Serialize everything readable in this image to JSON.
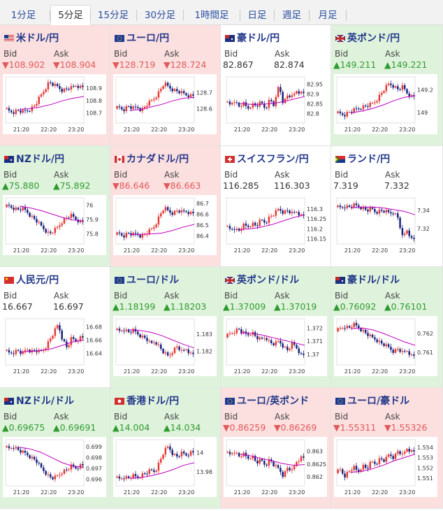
{
  "tabs": [
    "1分足",
    "5分足",
    "15分足",
    "30分足",
    "1時間足",
    "日足",
    "週足",
    "月足"
  ],
  "active_tab": "5分足",
  "labels": {
    "bid": "Bid",
    "ask": "Ask"
  },
  "colors": {
    "down_bg": "#fcdfdf",
    "up_bg": "#dff3dc",
    "up_candle": "#e53935",
    "down_candle": "#1a237e",
    "ma_line": "#c000c0"
  },
  "panels": [
    {
      "name": "米ドル/円",
      "flag": "us-flag",
      "trend": "down",
      "bid": "▼108.902",
      "ask": "▼108.904"
    },
    {
      "name": "ユーロ/円",
      "flag": "eu-flag",
      "trend": "down",
      "bid": "▼128.719",
      "ask": "▼128.724"
    },
    {
      "name": "豪ドル/円",
      "flag": "au-flag",
      "trend": "flat",
      "bid": "82.867",
      "ask": "82.874"
    },
    {
      "name": "英ポンド/円",
      "flag": "gb-flag",
      "trend": "up",
      "bid": "▲149.211",
      "ask": "▲149.221"
    },
    {
      "name": "NZドル/円",
      "flag": "nz-flag",
      "trend": "up",
      "bid": "▲75.880",
      "ask": "▲75.892"
    },
    {
      "name": "カナダドル/円",
      "flag": "ca-flag",
      "trend": "down",
      "bid": "▼86.646",
      "ask": "▼86.663"
    },
    {
      "name": "スイスフラン/円",
      "flag": "ch-flag",
      "trend": "flat",
      "bid": "116.285",
      "ask": "116.303"
    },
    {
      "name": "ランド/円",
      "flag": "za-flag",
      "trend": "flat",
      "bid": "7.319",
      "ask": "7.332"
    },
    {
      "name": "人民元/円",
      "flag": "cn-flag",
      "trend": "flat",
      "bid": "16.667",
      "ask": "16.697"
    },
    {
      "name": "ユーロ/ドル",
      "flag": "eu-flag",
      "trend": "up",
      "bid": "▲1.18199",
      "ask": "▲1.18203"
    },
    {
      "name": "英ポンド/ドル",
      "flag": "gb-flag",
      "trend": "up",
      "bid": "▲1.37009",
      "ask": "▲1.37019"
    },
    {
      "name": "豪ドル/ドル",
      "flag": "au-flag",
      "trend": "up",
      "bid": "▲0.76092",
      "ask": "▲0.76101"
    },
    {
      "name": "NZドル/ドル",
      "flag": "nz-flag",
      "trend": "up",
      "bid": "▲0.69675",
      "ask": "▲0.69691"
    },
    {
      "name": "香港ドル/円",
      "flag": "hk-flag",
      "trend": "up",
      "bid": "▲14.004",
      "ask": "▲14.034"
    },
    {
      "name": "ユーロ/英ポンド",
      "flag": "eu-flag",
      "trend": "down",
      "bid": "▼0.86259",
      "ask": "▼0.86269"
    },
    {
      "name": "ユーロ/豪ドル",
      "flag": "eu-flag",
      "trend": "down",
      "bid": "▼1.55311",
      "ask": "▼1.55326"
    }
  ],
  "chart_data": [
    {
      "type": "candlestick",
      "x_ticks": [
        "21:20",
        "22:20",
        "23:20"
      ],
      "y_ticks": [
        108.9,
        108.8,
        108.7
      ],
      "ylim": [
        108.63,
        108.98
      ],
      "shape": [
        0.3,
        0.24,
        0.22,
        0.26,
        0.22,
        0.25,
        0.3,
        0.4,
        0.58,
        0.74,
        0.92,
        0.84,
        0.8,
        0.72,
        0.76,
        0.78,
        0.84,
        0.8
      ],
      "ma": [
        0.28,
        0.3,
        0.34,
        0.4,
        0.48,
        0.54,
        0.58
      ]
    },
    {
      "type": "candlestick",
      "x_ticks": [
        "21:20",
        "22:20",
        "23:20"
      ],
      "y_ticks": [
        128.7,
        128.6
      ],
      "ylim": [
        128.52,
        128.79
      ],
      "shape": [
        0.3,
        0.32,
        0.28,
        0.36,
        0.3,
        0.34,
        0.26,
        0.38,
        0.46,
        0.56,
        0.7,
        0.88,
        0.8,
        0.74,
        0.7,
        0.66,
        0.62,
        0.6
      ],
      "ma": [
        0.26,
        0.28,
        0.34,
        0.4,
        0.48,
        0.54,
        0.56
      ]
    },
    {
      "type": "candlestick",
      "x_ticks": [
        "21:20",
        "22:20",
        "23:20"
      ],
      "y_ticks": [
        82.95,
        82.9,
        82.85,
        82.8
      ],
      "ylim": [
        82.76,
        82.98
      ],
      "shape": [
        0.46,
        0.38,
        0.5,
        0.34,
        0.42,
        0.3,
        0.4,
        0.36,
        0.44,
        0.3,
        0.52,
        0.36,
        0.86,
        0.42,
        0.62,
        0.56,
        0.72,
        0.66
      ],
      "ma": [
        0.42,
        0.4,
        0.4,
        0.42,
        0.46,
        0.52,
        0.58
      ]
    },
    {
      "type": "candlestick",
      "x_ticks": [
        "21:20",
        "22:20",
        "23:20"
      ],
      "y_ticks": [
        149.2,
        149.0
      ],
      "ylim": [
        148.92,
        149.3
      ],
      "shape": [
        0.2,
        0.18,
        0.16,
        0.22,
        0.26,
        0.3,
        0.34,
        0.36,
        0.4,
        0.48,
        0.62,
        0.76,
        0.88,
        0.82,
        0.74,
        0.8,
        0.66,
        0.58
      ],
      "ma": [
        0.2,
        0.24,
        0.3,
        0.38,
        0.48,
        0.56,
        0.6
      ]
    },
    {
      "type": "candlestick",
      "x_ticks": [
        "21:20",
        "22:20",
        "23:20"
      ],
      "y_ticks": [
        76,
        75.9,
        75.8
      ],
      "ylim": [
        75.74,
        76.04
      ],
      "shape": [
        0.82,
        0.84,
        0.8,
        0.76,
        0.78,
        0.72,
        0.6,
        0.52,
        0.4,
        0.3,
        0.2,
        0.26,
        0.36,
        0.5,
        0.58,
        0.62,
        0.54,
        0.48
      ],
      "ma": [
        0.84,
        0.8,
        0.74,
        0.66,
        0.58,
        0.52,
        0.5
      ]
    },
    {
      "type": "candlestick",
      "x_ticks": [
        "21:20",
        "22:20",
        "23:20"
      ],
      "y_ticks": [
        86.7,
        86.6,
        86.5,
        86.4
      ],
      "ylim": [
        86.34,
        86.74
      ],
      "shape": [
        0.18,
        0.2,
        0.16,
        0.22,
        0.18,
        0.2,
        0.14,
        0.22,
        0.28,
        0.4,
        0.62,
        0.8,
        0.72,
        0.68,
        0.74,
        0.7,
        0.72,
        0.68
      ],
      "ma": [
        0.18,
        0.19,
        0.2,
        0.22,
        0.28,
        0.36,
        0.42
      ]
    },
    {
      "type": "candlestick",
      "x_ticks": [
        "21:20",
        "22:20",
        "23:20"
      ],
      "y_ticks": [
        116.3,
        116.25,
        116.2,
        116.15
      ],
      "ylim": [
        116.13,
        116.35
      ],
      "shape": [
        0.38,
        0.3,
        0.34,
        0.26,
        0.4,
        0.36,
        0.44,
        0.38,
        0.52,
        0.46,
        0.6,
        0.66,
        0.78,
        0.7,
        0.74,
        0.66,
        0.72,
        0.62
      ],
      "ma": [
        0.3,
        0.32,
        0.36,
        0.42,
        0.5,
        0.58,
        0.64
      ]
    },
    {
      "type": "candlestick",
      "x_ticks": [
        "21:20",
        "22:20",
        "23:20"
      ],
      "y_ticks": [
        7.34,
        7.32
      ],
      "ylim": [
        7.305,
        7.352
      ],
      "shape": [
        0.82,
        0.8,
        0.84,
        0.82,
        0.86,
        0.84,
        0.8,
        0.74,
        0.78,
        0.7,
        0.74,
        0.72,
        0.68,
        0.7,
        0.56,
        0.1,
        0.3,
        0.08
      ],
      "ma": [
        0.8,
        0.82,
        0.82,
        0.8,
        0.76,
        0.72,
        0.64
      ]
    },
    {
      "type": "candlestick",
      "x_ticks": [
        "21:20",
        "22:20",
        "23:20"
      ],
      "y_ticks": [
        16.68,
        16.66,
        16.64
      ],
      "ylim": [
        16.625,
        16.69
      ],
      "shape": [
        0.3,
        0.24,
        0.26,
        0.3,
        0.22,
        0.34,
        0.28,
        0.3,
        0.26,
        0.34,
        0.52,
        0.7,
        0.9,
        0.56,
        0.36,
        0.58,
        0.52,
        0.6
      ],
      "ma": [
        0.26,
        0.28,
        0.3,
        0.34,
        0.42,
        0.5,
        0.54
      ]
    },
    {
      "type": "candlestick",
      "x_ticks": [
        "21:20",
        "22:20",
        "23:20"
      ],
      "y_ticks": [
        1.183,
        1.182
      ],
      "ylim": [
        1.1813,
        1.1838
      ],
      "shape": [
        0.78,
        0.74,
        0.8,
        0.72,
        0.76,
        0.7,
        0.62,
        0.58,
        0.44,
        0.52,
        0.38,
        0.24,
        0.16,
        0.3,
        0.4,
        0.26,
        0.34,
        0.22
      ],
      "ma": [
        0.78,
        0.76,
        0.72,
        0.64,
        0.54,
        0.44,
        0.36
      ]
    },
    {
      "type": "candlestick",
      "x_ticks": [
        "21:20",
        "22:20",
        "23:20"
      ],
      "y_ticks": [
        1.372,
        1.371,
        1.37
      ],
      "ylim": [
        1.3693,
        1.3726
      ],
      "shape": [
        0.6,
        0.68,
        0.74,
        0.8,
        0.7,
        0.66,
        0.72,
        0.6,
        0.54,
        0.62,
        0.48,
        0.44,
        0.52,
        0.4,
        0.3,
        0.46,
        0.36,
        0.2
      ],
      "ma": [
        0.7,
        0.7,
        0.66,
        0.6,
        0.54,
        0.48,
        0.42
      ]
    },
    {
      "type": "candlestick",
      "x_ticks": [
        "21:20",
        "22:20",
        "23:20"
      ],
      "y_ticks": [
        0.762,
        0.761
      ],
      "ylim": [
        0.7604,
        0.7627
      ],
      "shape": [
        0.74,
        0.8,
        0.86,
        0.82,
        0.9,
        0.84,
        0.76,
        0.68,
        0.6,
        0.56,
        0.48,
        0.42,
        0.36,
        0.28,
        0.34,
        0.24,
        0.3,
        0.18
      ],
      "ma": [
        0.8,
        0.82,
        0.78,
        0.7,
        0.6,
        0.5,
        0.42
      ]
    },
    {
      "type": "candlestick",
      "x_ticks": [
        "21:20",
        "22:20",
        "23:20"
      ],
      "y_ticks": [
        0.699,
        0.698,
        0.697,
        0.696
      ],
      "ylim": [
        0.6955,
        0.6995
      ],
      "shape": [
        0.86,
        0.82,
        0.88,
        0.8,
        0.74,
        0.7,
        0.62,
        0.56,
        0.4,
        0.3,
        0.18,
        0.14,
        0.2,
        0.3,
        0.34,
        0.42,
        0.38,
        0.44
      ],
      "ma": [
        0.86,
        0.82,
        0.74,
        0.62,
        0.5,
        0.42,
        0.4
      ]
    },
    {
      "type": "candlestick",
      "x_ticks": [
        "21:20",
        "22:20",
        "23:20"
      ],
      "y_ticks": [
        14,
        13.98
      ],
      "ylim": [
        13.967,
        14.012
      ],
      "shape": [
        0.16,
        0.12,
        0.18,
        0.14,
        0.2,
        0.16,
        0.22,
        0.26,
        0.32,
        0.3,
        0.52,
        0.76,
        0.88,
        0.7,
        0.64,
        0.72,
        0.68,
        0.74
      ],
      "ma": [
        0.14,
        0.16,
        0.2,
        0.26,
        0.34,
        0.44,
        0.5
      ]
    },
    {
      "type": "candlestick",
      "x_ticks": [
        "21:20",
        "22:20",
        "23:20"
      ],
      "y_ticks": [
        0.863,
        0.8625,
        0.862
      ],
      "ylim": [
        0.8617,
        0.8634
      ],
      "shape": [
        0.74,
        0.68,
        0.78,
        0.64,
        0.7,
        0.6,
        0.66,
        0.5,
        0.56,
        0.44,
        0.58,
        0.42,
        0.36,
        0.2,
        0.4,
        0.3,
        0.54,
        0.62
      ],
      "ma": [
        0.7,
        0.66,
        0.6,
        0.54,
        0.48,
        0.44,
        0.46
      ]
    },
    {
      "type": "candlestick",
      "x_ticks": [
        "21:20",
        "22:20",
        "23:20"
      ],
      "y_ticks": [
        1.554,
        1.553,
        1.552,
        1.551
      ],
      "ylim": [
        1.5504,
        1.5546
      ],
      "shape": [
        0.26,
        0.34,
        0.2,
        0.3,
        0.4,
        0.28,
        0.44,
        0.36,
        0.52,
        0.48,
        0.6,
        0.54,
        0.7,
        0.62,
        0.78,
        0.66,
        0.84,
        0.76
      ],
      "ma": [
        0.28,
        0.3,
        0.36,
        0.44,
        0.54,
        0.62,
        0.7
      ]
    }
  ]
}
